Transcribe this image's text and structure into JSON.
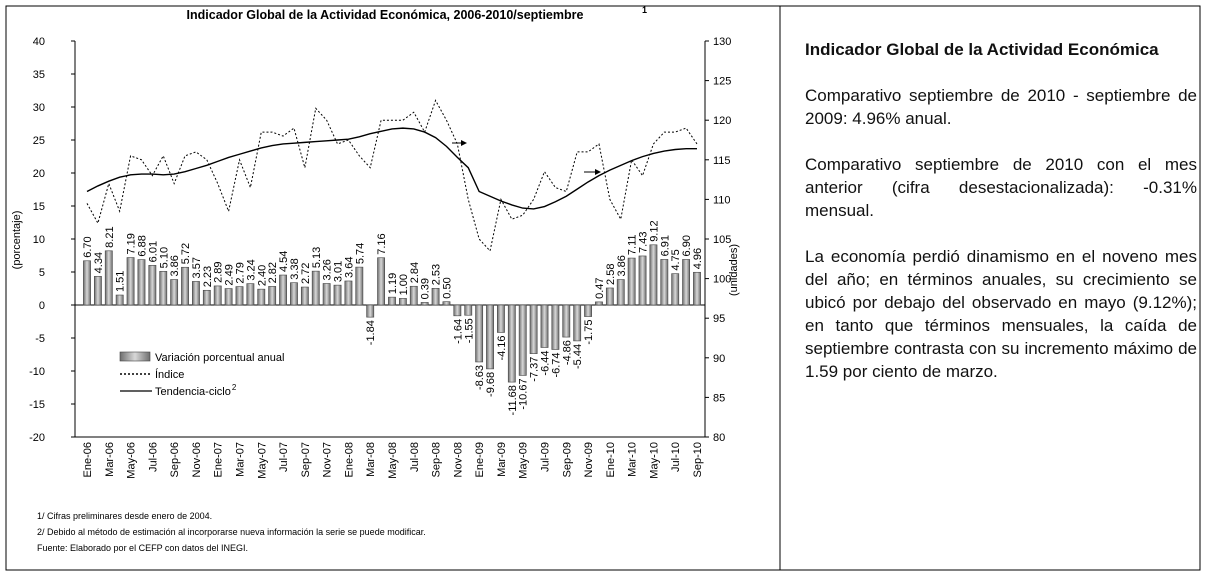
{
  "chart_data": {
    "type": "combo",
    "title": "Indicador Global de la Actividad Económica, 2006-2010/septiembre",
    "title_note": "1",
    "y_label": "(porcentaje)",
    "y2_label": "(unidades)",
    "categories": [
      "Ene-06",
      null,
      "Mar-06",
      null,
      "May-06",
      null,
      "Jul-06",
      null,
      "Sep-06",
      null,
      "Nov-06",
      null,
      "Ene-07",
      null,
      "Mar-07",
      null,
      "May-07",
      null,
      "Jul-07",
      null,
      "Sep-07",
      null,
      "Nov-07",
      null,
      "Ene-08",
      null,
      "Mar-08",
      null,
      "May-08",
      null,
      "Jul-08",
      null,
      "Sep-08",
      null,
      "Nov-08",
      null,
      "Ene-09",
      null,
      "Mar-09",
      null,
      "May-09",
      null,
      "Jul-09",
      null,
      "Sep-09",
      null,
      "Nov-09",
      null,
      "Ene-10",
      null,
      "Mar-10",
      null,
      "May-10",
      null,
      "Jul-10",
      null,
      "Sep-10"
    ],
    "ylim": [
      -20,
      40
    ],
    "yticks": [
      -20,
      -15,
      -10,
      -5,
      0,
      5,
      10,
      15,
      20,
      25,
      30,
      35,
      40
    ],
    "y2lim": [
      80,
      130
    ],
    "y2ticks": [
      80,
      85,
      90,
      95,
      100,
      105,
      110,
      115,
      120,
      125,
      130
    ],
    "grid": false,
    "series": [
      {
        "name": "Variación porcentual anual",
        "type": "bar",
        "axis": "y",
        "color": "#9a9a9a",
        "values": [
          6.7,
          4.34,
          8.21,
          1.51,
          7.19,
          6.88,
          6.01,
          5.1,
          3.86,
          5.72,
          3.57,
          2.23,
          2.89,
          2.49,
          2.79,
          3.24,
          2.4,
          2.82,
          4.54,
          3.38,
          2.72,
          5.13,
          3.26,
          3.01,
          3.64,
          5.74,
          -1.84,
          7.16,
          1.19,
          1.0,
          2.84,
          0.39,
          2.53,
          0.5,
          -1.64,
          -1.55,
          -8.63,
          -9.68,
          -4.16,
          -11.68,
          -10.67,
          -7.37,
          -6.44,
          -6.74,
          -4.86,
          -5.44,
          -1.75,
          0.47,
          2.58,
          3.86,
          7.11,
          7.43,
          9.12,
          6.91,
          4.75,
          6.9,
          4.96
        ],
        "value_labels": [
          "6.70",
          "4.34",
          "8.21",
          "1.51",
          "7.19",
          "6.88",
          "6.01",
          "5.10",
          "3.86",
          "5.72",
          "3.57",
          "2.23",
          "2.89",
          "2.49",
          "2.79",
          "3.24",
          "2.40",
          "2.82",
          "4.54",
          "3.38",
          "2.72",
          "5.13",
          "3.26",
          "3.01",
          "3.64",
          "5.74",
          "-1.84",
          "7.16",
          "1.19",
          "1.00",
          "2.84",
          "0.39",
          "2.53",
          "0.50",
          "-1.64",
          "-1.55",
          "-8.63",
          "-9.68",
          "-4.16",
          "-11.68",
          "-10.67",
          "-7.37",
          "-6.44",
          "-6.74",
          "-4.86",
          "-5.44",
          "-1.75",
          "0.47",
          "2.58",
          "3.86",
          "7.11",
          "7.43",
          "9.12",
          "6.91",
          "4.75",
          "6.90",
          "4.96"
        ]
      },
      {
        "name": "Índice",
        "type": "line",
        "axis": "y2",
        "color": "#000",
        "dash": true,
        "values": [
          109.5,
          107,
          112,
          108.5,
          115.5,
          115,
          113,
          115.5,
          112,
          115.5,
          116,
          115,
          112,
          108.5,
          115,
          111.5,
          118.5,
          118.5,
          118,
          119,
          114,
          121.5,
          120,
          117,
          117.5,
          115.5,
          114,
          120,
          120,
          120,
          121,
          118.5,
          122.5,
          120,
          117,
          110,
          105,
          103.5,
          110,
          107.5,
          108,
          110,
          113.5,
          111.5,
          111,
          116,
          116,
          117,
          110,
          107.5,
          115,
          113,
          117,
          118.5,
          118.5,
          119,
          117
        ]
      },
      {
        "name": "Tendencia-ciclo",
        "note": "2",
        "type": "line",
        "axis": "y2",
        "color": "#000",
        "dash": false,
        "values": [
          111,
          111.7,
          112.3,
          112.8,
          113.1,
          113.2,
          113.2,
          113.1,
          113.2,
          113.5,
          113.9,
          114.3,
          114.8,
          115.3,
          115.7,
          116.1,
          116.5,
          116.8,
          117,
          117.1,
          117.2,
          117.3,
          117.4,
          117.5,
          117.6,
          117.9,
          118.3,
          118.6,
          118.9,
          119,
          118.9,
          118.5,
          117.8,
          116.7,
          115.3,
          114,
          111,
          110.4,
          109.8,
          109.3,
          108.9,
          108.8,
          109.1,
          109.7,
          110.4,
          111.3,
          112.2,
          113,
          113.7,
          114.3,
          114.9,
          115.4,
          115.8,
          116.1,
          116.3,
          116.4,
          116.4
        ]
      }
    ]
  },
  "notes": [
    "1/ Cifras preliminares desde enero de 2004.",
    "2/ Debido al método de estimación al incorporarse nueva información la serie se puede modificar.",
    "Fuente: Elaborado por el CEFP con datos del INEGI."
  ],
  "side_panel": {
    "title": "Indicador Global de la Actividad Económica",
    "paragraphs": [
      "Comparativo septiembre de 2010 - septiembre de 2009: 4.96% anual.",
      "Comparativo septiembre de 2010 con el mes anterior (cifra desestacionalizada): -0.31% mensual.",
      "La economía perdió dinamismo en el noveno mes del año; en términos anuales, su crecimiento se ubicó por debajo del observado en mayo (9.12%); en tanto que términos mensuales, la caída de septiembre contrasta con su incremento máximo de 1.59 por ciento de marzo."
    ]
  }
}
